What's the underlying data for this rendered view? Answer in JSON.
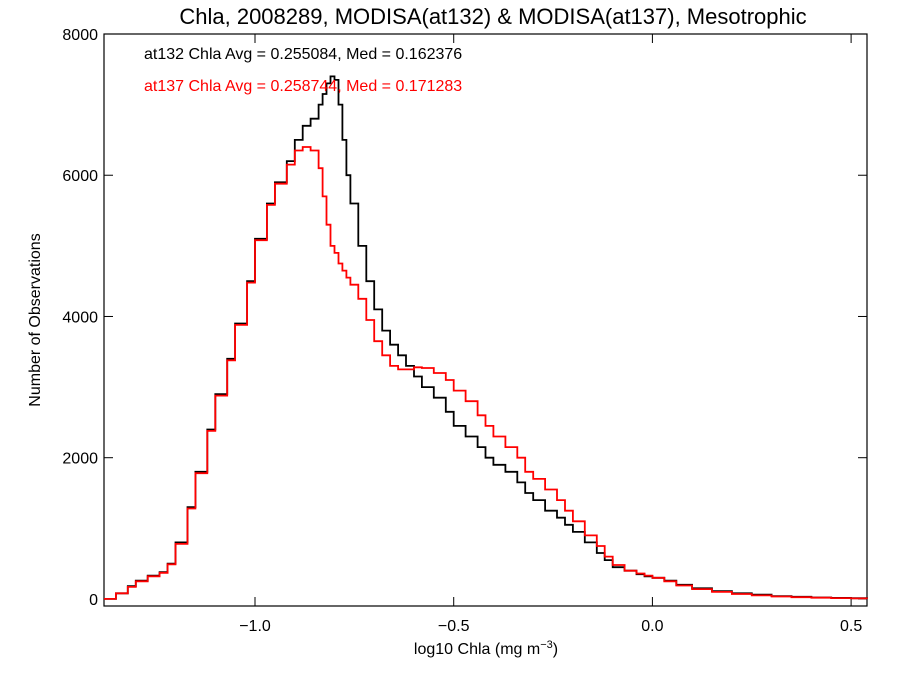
{
  "chart_data": {
    "type": "line",
    "title": "Chla, 2008289, MODISA(at132) & MODISA(at137), Mesotrophic",
    "xlabel_prefix": "log10 Chla (mg m",
    "xlabel_sup": "−3",
    "xlabel_suffix": ")",
    "ylabel": "Number of Observations",
    "xlim": [
      -1.38,
      0.54
    ],
    "ylim": [
      -100,
      8000
    ],
    "xticks": [
      -1.0,
      -0.5,
      0.0,
      0.5
    ],
    "xtick_labels": [
      "−1.0",
      "−0.5",
      "0.0",
      "0.5"
    ],
    "yticks": [
      0,
      2000,
      4000,
      6000,
      8000
    ],
    "ytick_labels": [
      "0",
      "2000",
      "4000",
      "6000",
      "8000"
    ],
    "grid": false,
    "annotations": [
      {
        "text": "at132 Chla Avg = 0.255084, Med = 0.162376",
        "color": "#000000"
      },
      {
        "text": "at137 Chla Avg = 0.258744, Med = 0.171283",
        "color": "#ff0000"
      }
    ],
    "series": [
      {
        "color": "#000000",
        "x": [
          -1.38,
          -1.35,
          -1.32,
          -1.3,
          -1.27,
          -1.24,
          -1.22,
          -1.2,
          -1.17,
          -1.15,
          -1.12,
          -1.1,
          -1.07,
          -1.05,
          -1.02,
          -1.0,
          -0.97,
          -0.95,
          -0.92,
          -0.9,
          -0.88,
          -0.86,
          -0.84,
          -0.83,
          -0.82,
          -0.81,
          -0.8,
          -0.79,
          -0.78,
          -0.77,
          -0.76,
          -0.74,
          -0.72,
          -0.7,
          -0.68,
          -0.66,
          -0.64,
          -0.62,
          -0.6,
          -0.58,
          -0.55,
          -0.52,
          -0.5,
          -0.47,
          -0.44,
          -0.42,
          -0.4,
          -0.37,
          -0.34,
          -0.32,
          -0.3,
          -0.27,
          -0.24,
          -0.22,
          -0.2,
          -0.17,
          -0.14,
          -0.12,
          -0.1,
          -0.07,
          -0.04,
          -0.02,
          0.0,
          0.03,
          0.06,
          0.1,
          0.15,
          0.2,
          0.25,
          0.3,
          0.35,
          0.4,
          0.45,
          0.5,
          0.54
        ],
        "y": [
          0,
          80,
          180,
          260,
          330,
          380,
          500,
          800,
          1300,
          1800,
          2400,
          2900,
          3400,
          3900,
          4500,
          5100,
          5600,
          5900,
          6200,
          6500,
          6700,
          6800,
          7000,
          7150,
          7300,
          7400,
          7350,
          7000,
          6500,
          6000,
          5600,
          5000,
          4500,
          4100,
          3800,
          3600,
          3450,
          3300,
          3150,
          3000,
          2850,
          2650,
          2450,
          2300,
          2150,
          2000,
          1900,
          1800,
          1650,
          1500,
          1400,
          1250,
          1150,
          1050,
          950,
          800,
          650,
          550,
          450,
          400,
          350,
          320,
          300,
          260,
          200,
          150,
          110,
          80,
          60,
          40,
          30,
          20,
          15,
          10,
          5
        ]
      },
      {
        "color": "#ff0000",
        "x": [
          -1.38,
          -1.35,
          -1.32,
          -1.3,
          -1.27,
          -1.24,
          -1.22,
          -1.2,
          -1.17,
          -1.15,
          -1.12,
          -1.1,
          -1.07,
          -1.05,
          -1.02,
          -1.0,
          -0.97,
          -0.95,
          -0.92,
          -0.9,
          -0.88,
          -0.86,
          -0.84,
          -0.83,
          -0.82,
          -0.81,
          -0.8,
          -0.79,
          -0.78,
          -0.77,
          -0.76,
          -0.74,
          -0.72,
          -0.7,
          -0.68,
          -0.66,
          -0.64,
          -0.62,
          -0.6,
          -0.58,
          -0.55,
          -0.52,
          -0.5,
          -0.47,
          -0.44,
          -0.42,
          -0.4,
          -0.37,
          -0.34,
          -0.32,
          -0.3,
          -0.27,
          -0.24,
          -0.22,
          -0.2,
          -0.17,
          -0.14,
          -0.12,
          -0.1,
          -0.07,
          -0.04,
          -0.02,
          0.0,
          0.03,
          0.06,
          0.1,
          0.15,
          0.2,
          0.25,
          0.3,
          0.35,
          0.4,
          0.45,
          0.5,
          0.54
        ],
        "y": [
          0,
          80,
          170,
          250,
          320,
          370,
          490,
          780,
          1280,
          1780,
          2380,
          2880,
          3380,
          3880,
          4480,
          5080,
          5580,
          5880,
          6150,
          6350,
          6400,
          6350,
          6100,
          5700,
          5300,
          5000,
          4900,
          4750,
          4650,
          4550,
          4450,
          4250,
          3950,
          3650,
          3450,
          3300,
          3250,
          3250,
          3280,
          3270,
          3200,
          3100,
          2950,
          2800,
          2600,
          2450,
          2300,
          2150,
          2000,
          1800,
          1700,
          1550,
          1400,
          1250,
          1100,
          900,
          750,
          600,
          480,
          400,
          360,
          330,
          300,
          250,
          190,
          140,
          100,
          70,
          50,
          35,
          25,
          18,
          12,
          8,
          4
        ]
      }
    ]
  }
}
